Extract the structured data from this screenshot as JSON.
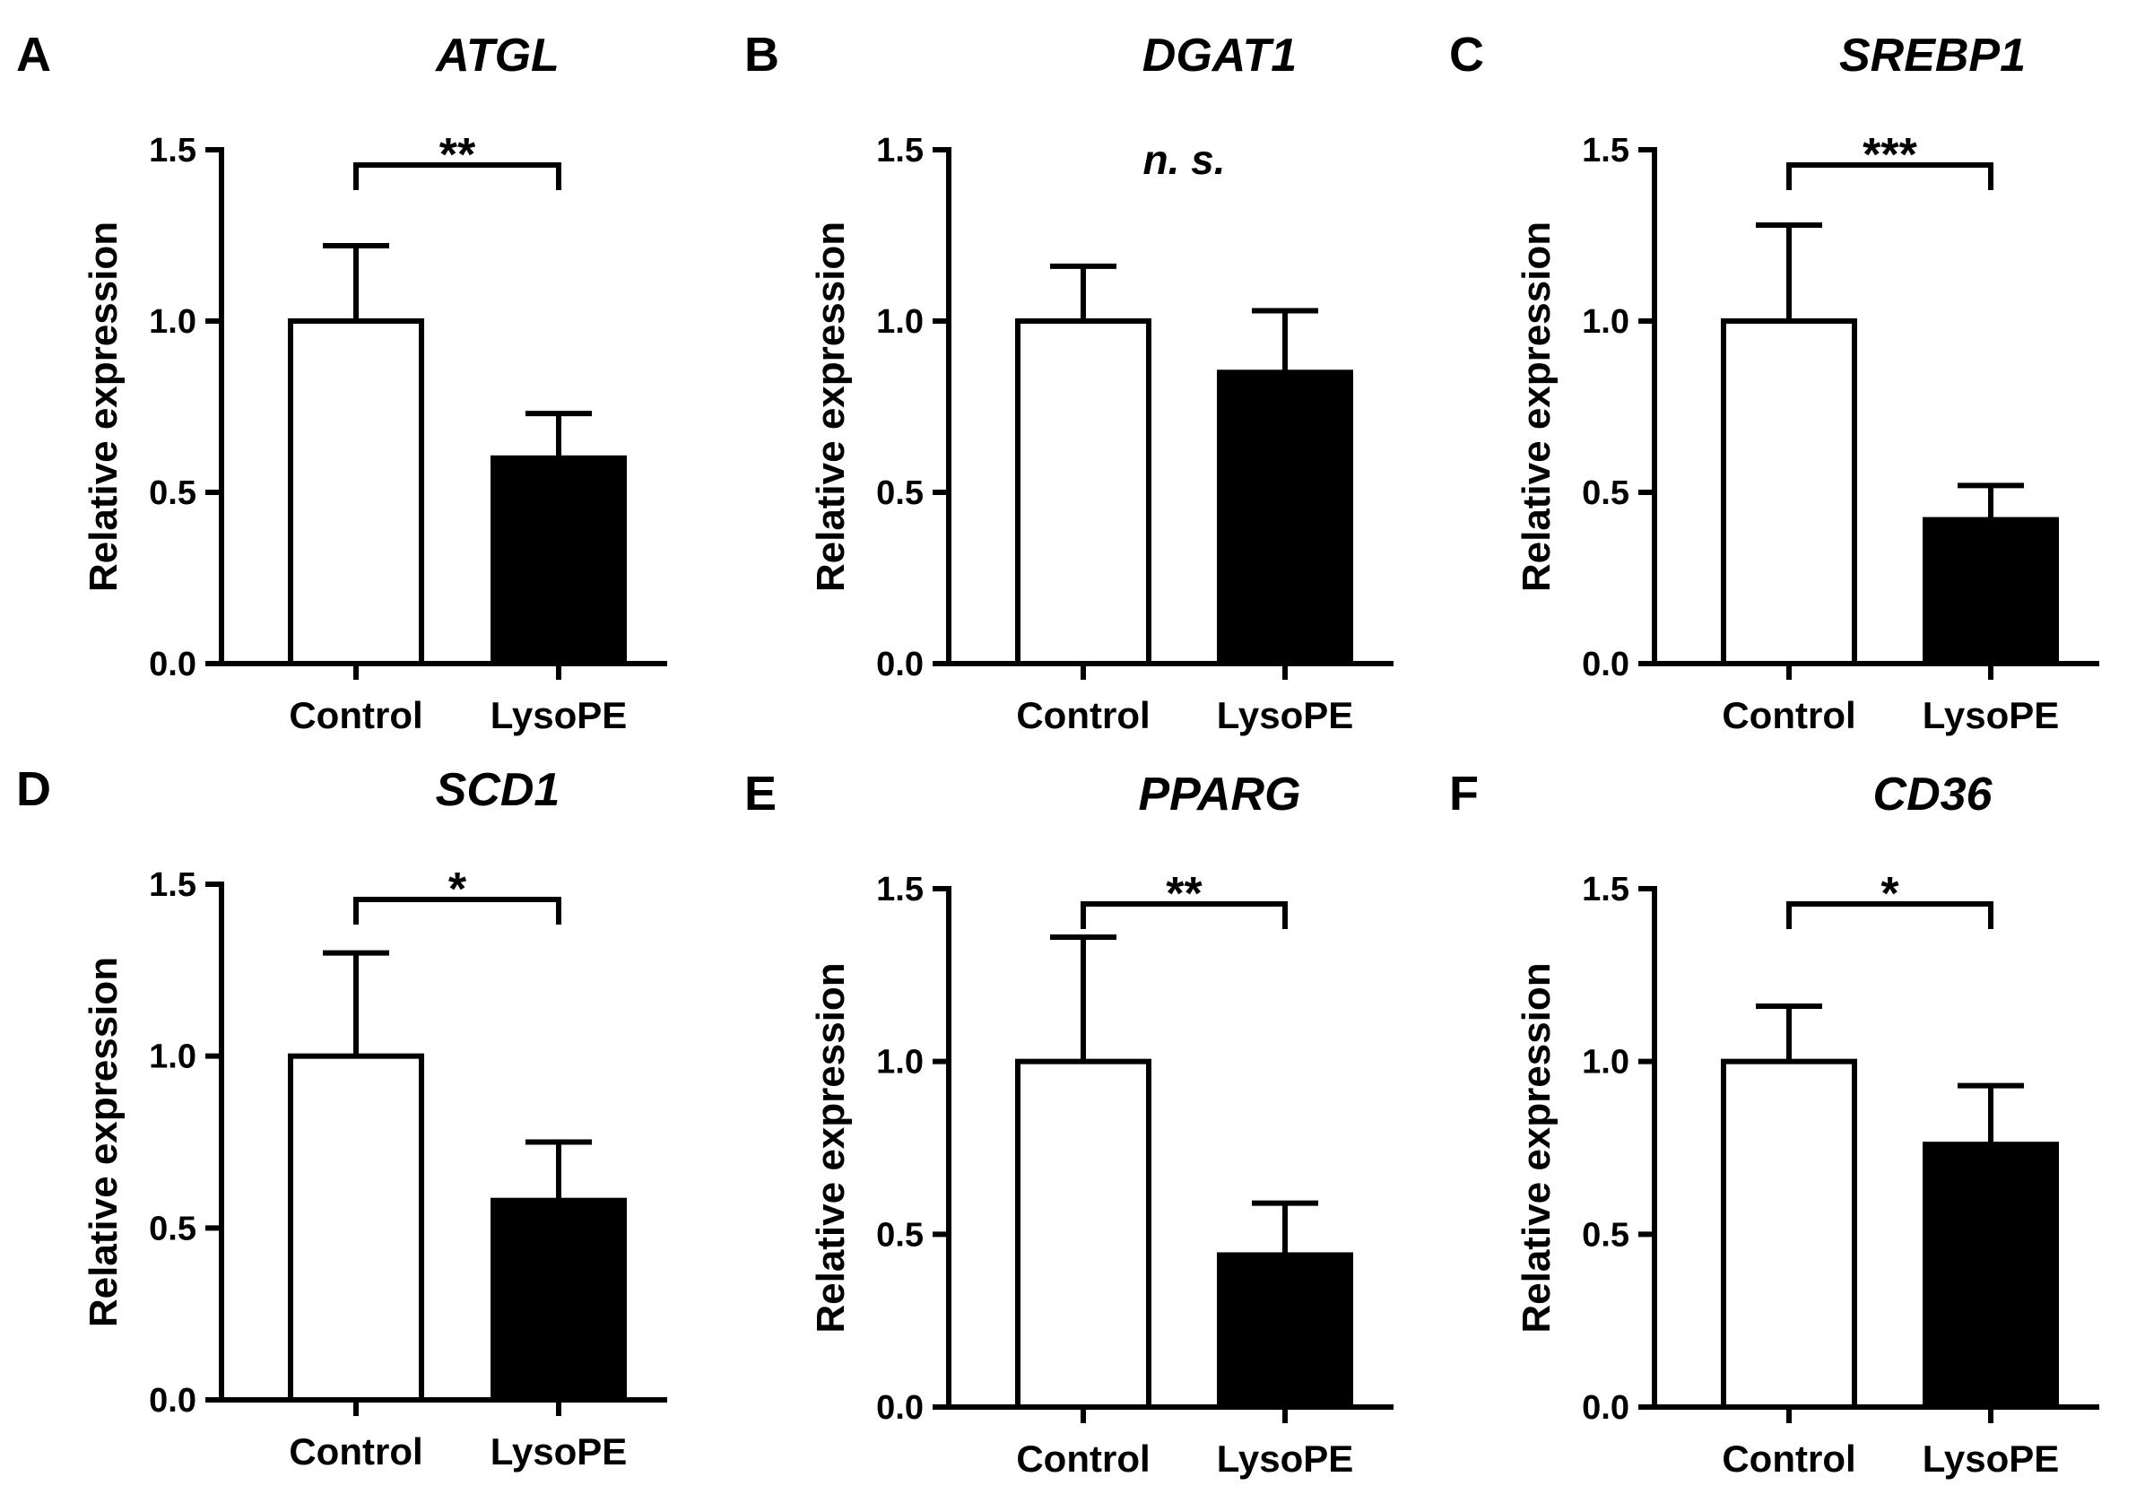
{
  "chart_data": [
    {
      "panel": "A",
      "type": "bar",
      "title": "ATGL",
      "ylabel": "Relative expression",
      "xlabel": "",
      "categories": [
        "Control",
        "LysoPE"
      ],
      "values": [
        1.0,
        0.6
      ],
      "errors": [
        0.22,
        0.13
      ],
      "bar_colors": [
        "#ffffff",
        "#000000"
      ],
      "ylim": [
        0,
        1.5
      ],
      "yticks": [
        "0.0",
        "0.5",
        "1.0",
        "1.5"
      ],
      "significance": "**"
    },
    {
      "panel": "B",
      "type": "bar",
      "title": "DGAT1",
      "ylabel": "Relative expression",
      "xlabel": "",
      "categories": [
        "Control",
        "LysoPE"
      ],
      "values": [
        1.0,
        0.85
      ],
      "errors": [
        0.16,
        0.18
      ],
      "bar_colors": [
        "#ffffff",
        "#000000"
      ],
      "ylim": [
        0,
        1.5
      ],
      "yticks": [
        "0.0",
        "0.5",
        "1.0",
        "1.5"
      ],
      "significance": "n. s."
    },
    {
      "panel": "C",
      "type": "bar",
      "title": "SREBP1",
      "ylabel": "Relative expression",
      "xlabel": "",
      "categories": [
        "Control",
        "LysoPE"
      ],
      "values": [
        1.0,
        0.42
      ],
      "errors": [
        0.28,
        0.1
      ],
      "bar_colors": [
        "#ffffff",
        "#000000"
      ],
      "ylim": [
        0,
        1.5
      ],
      "yticks": [
        "0.0",
        "0.5",
        "1.0",
        "1.5"
      ],
      "significance": "***"
    },
    {
      "panel": "D",
      "type": "bar",
      "title": "SCD1",
      "ylabel": "Relative expression",
      "xlabel": "",
      "categories": [
        "Control",
        "LysoPE"
      ],
      "values": [
        1.0,
        0.58
      ],
      "errors": [
        0.3,
        0.17
      ],
      "bar_colors": [
        "#ffffff",
        "#000000"
      ],
      "ylim": [
        0,
        1.5
      ],
      "yticks": [
        "0.0",
        "0.5",
        "1.0",
        "1.5"
      ],
      "significance": "*"
    },
    {
      "panel": "E",
      "type": "bar",
      "title": "PPARG",
      "ylabel": "Relative expression",
      "xlabel": "",
      "categories": [
        "Control",
        "LysoPE"
      ],
      "values": [
        1.0,
        0.44
      ],
      "errors": [
        0.36,
        0.15
      ],
      "bar_colors": [
        "#ffffff",
        "#000000"
      ],
      "ylim": [
        0,
        1.5
      ],
      "yticks": [
        "0.0",
        "0.5",
        "1.0",
        "1.5"
      ],
      "significance": "**"
    },
    {
      "panel": "F",
      "type": "bar",
      "title": "CD36",
      "ylabel": "Relative expression",
      "xlabel": "",
      "categories": [
        "Control",
        "LysoPE"
      ],
      "values": [
        1.0,
        0.76
      ],
      "errors": [
        0.16,
        0.17
      ],
      "bar_colors": [
        "#ffffff",
        "#000000"
      ],
      "ylim": [
        0,
        1.5
      ],
      "yticks": [
        "0.0",
        "0.5",
        "1.0",
        "1.5"
      ],
      "significance": "*"
    }
  ]
}
